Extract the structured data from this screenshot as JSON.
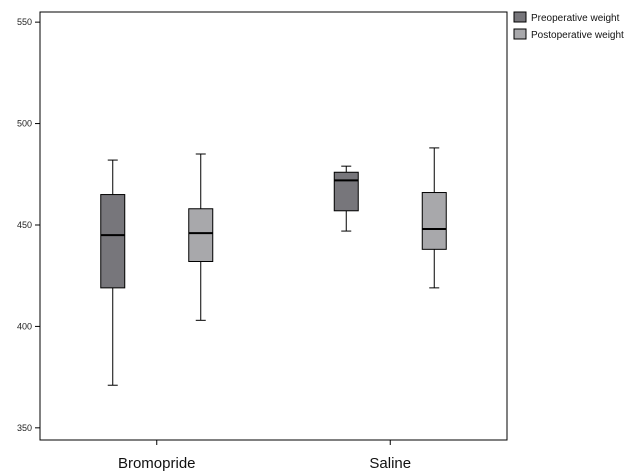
{
  "chart_data": {
    "type": "boxplot",
    "categories": [
      "Bromopride",
      "Saline"
    ],
    "yticks": [
      "350",
      "400",
      "450",
      "500",
      "550"
    ],
    "ylim": [
      344,
      555
    ],
    "series": [
      {
        "name": "Preoperative weight",
        "color": "#77767b",
        "boxes": [
          {
            "min": 371,
            "q1": 419,
            "median": 445,
            "q3": 465,
            "max": 482
          },
          {
            "min": 447,
            "q1": 457,
            "median": 472,
            "q3": 476,
            "max": 479
          }
        ]
      },
      {
        "name": "Postoperative weight",
        "color": "#a8a8ab",
        "boxes": [
          {
            "min": 403,
            "q1": 432,
            "median": 446,
            "q3": 458,
            "max": 485
          },
          {
            "min": 419,
            "q1": 438,
            "median": 448,
            "q3": 466,
            "max": 488
          }
        ]
      }
    ],
    "legend_position": "top-right"
  }
}
